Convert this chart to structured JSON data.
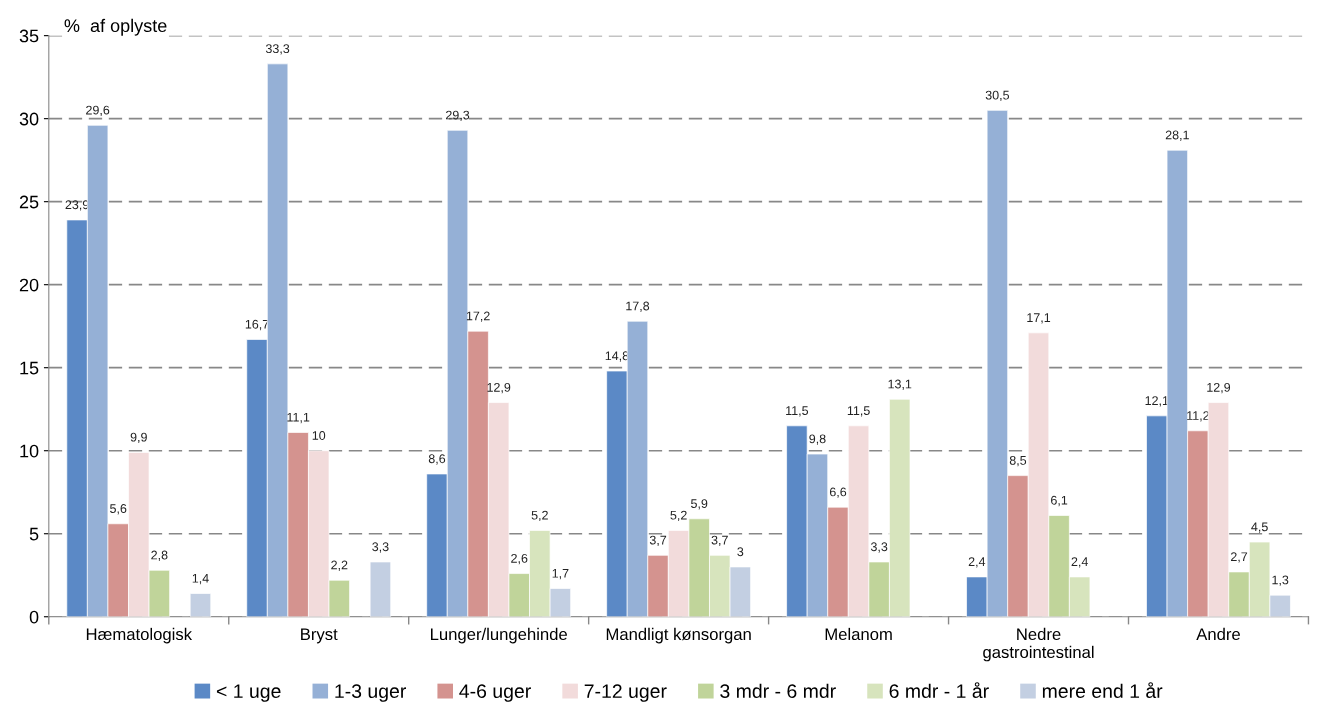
{
  "chart_data": {
    "type": "bar",
    "ylabel": "%  af oplyste",
    "categories": [
      "Hæmatologisk",
      "Bryst",
      "Lunger/lungehinde",
      "Mandligt kønsorgan",
      "Melanom",
      "Nedre\ngastrointestinal",
      "Andre"
    ],
    "series": [
      {
        "name": "< 1 uge",
        "color": "#5b89c6",
        "values": [
          23.9,
          16.7,
          8.6,
          14.8,
          11.5,
          2.4,
          12.1
        ],
        "value_labels": [
          "23,9",
          "16,7",
          "8,6",
          "14,8",
          "11,5",
          "2,4",
          "12,1"
        ]
      },
      {
        "name": "1-3 uger",
        "color": "#95b0d6",
        "values": [
          29.6,
          33.3,
          29.3,
          17.8,
          9.8,
          30.5,
          28.1
        ],
        "value_labels": [
          "29,6",
          "33,3",
          "29,3",
          "17,8",
          "9,8",
          "30,5",
          "28,1"
        ]
      },
      {
        "name": "4-6 uger",
        "color": "#d4938f",
        "values": [
          5.6,
          11.1,
          17.2,
          3.7,
          6.6,
          8.5,
          11.2
        ],
        "value_labels": [
          "5,6",
          "11,1",
          "17,2",
          "3,7",
          "6,6",
          "8,5",
          "11,2"
        ]
      },
      {
        "name": "7-12 uger",
        "color": "#f2dbdb",
        "values": [
          9.9,
          10,
          12.9,
          5.2,
          11.5,
          17.1,
          12.9
        ],
        "value_labels": [
          "9,9",
          "10",
          "12,9",
          "5,2",
          "11,5",
          "17,1",
          "12,9"
        ]
      },
      {
        "name": "3 mdr - 6 mdr",
        "color": "#c0d49a",
        "values": [
          2.8,
          2.2,
          2.6,
          5.9,
          3.3,
          6.1,
          2.7
        ],
        "value_labels": [
          "2,8",
          "2,2",
          "2,6",
          "5,9",
          "3,3",
          "6,1",
          "2,7"
        ]
      },
      {
        "name": "6 mdr - 1 år",
        "color": "#d7e4bd",
        "values": [
          null,
          null,
          5.2,
          3.7,
          13.1,
          2.4,
          4.5
        ],
        "value_labels": [
          null,
          null,
          "5,2",
          "3,7",
          "13,1",
          "2,4",
          "4,5"
        ]
      },
      {
        "name": "mere end 1 år",
        "color": "#c3cfe2",
        "values": [
          1.4,
          3.3,
          1.7,
          3,
          null,
          null,
          1.3
        ],
        "value_labels": [
          "1,4",
          "3,3",
          "1,7",
          "3",
          null,
          null,
          "1,3"
        ]
      }
    ],
    "ylim": [
      0,
      35
    ],
    "yticks": [
      0,
      5,
      10,
      15,
      20,
      25,
      30,
      35
    ],
    "grid": "y",
    "legend": "bottom"
  }
}
